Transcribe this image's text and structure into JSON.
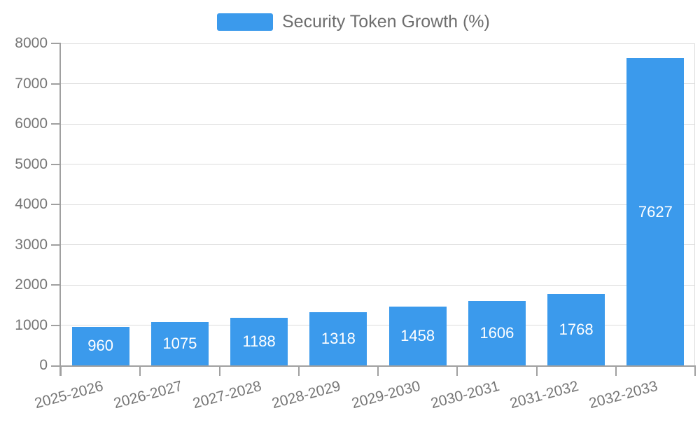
{
  "colors": {
    "background": "#ffffff",
    "bar": "#3b9aec",
    "bar_label": "#ffffff",
    "axis_line": "#a0a0a0",
    "grid_line": "#dcdcdc",
    "axis_text": "#757575",
    "legend_text": "#6e6e6e"
  },
  "legend": {
    "label": "Security Token Growth (%)"
  },
  "chart_data": {
    "type": "bar",
    "title": "Security Token Growth (%)",
    "series_name": "Security Token Growth (%)",
    "categories": [
      "2025-2026",
      "2026-2027",
      "2027-2028",
      "2028-2029",
      "2029-2030",
      "2030-2031",
      "2031-2032",
      "2032-2033"
    ],
    "values": [
      960,
      1075,
      1188,
      1318,
      1458,
      1606,
      1768,
      7627
    ],
    "bar_labels_shown": true,
    "xlabel": "",
    "ylabel": "",
    "ylim": [
      0,
      8000
    ],
    "ytick_interval": 1000,
    "yticks": [
      0,
      1000,
      2000,
      3000,
      4000,
      5000,
      6000,
      7000,
      8000
    ],
    "grid": true,
    "legend_position": "top-center",
    "x_tick_label_rotation_deg": -15
  }
}
